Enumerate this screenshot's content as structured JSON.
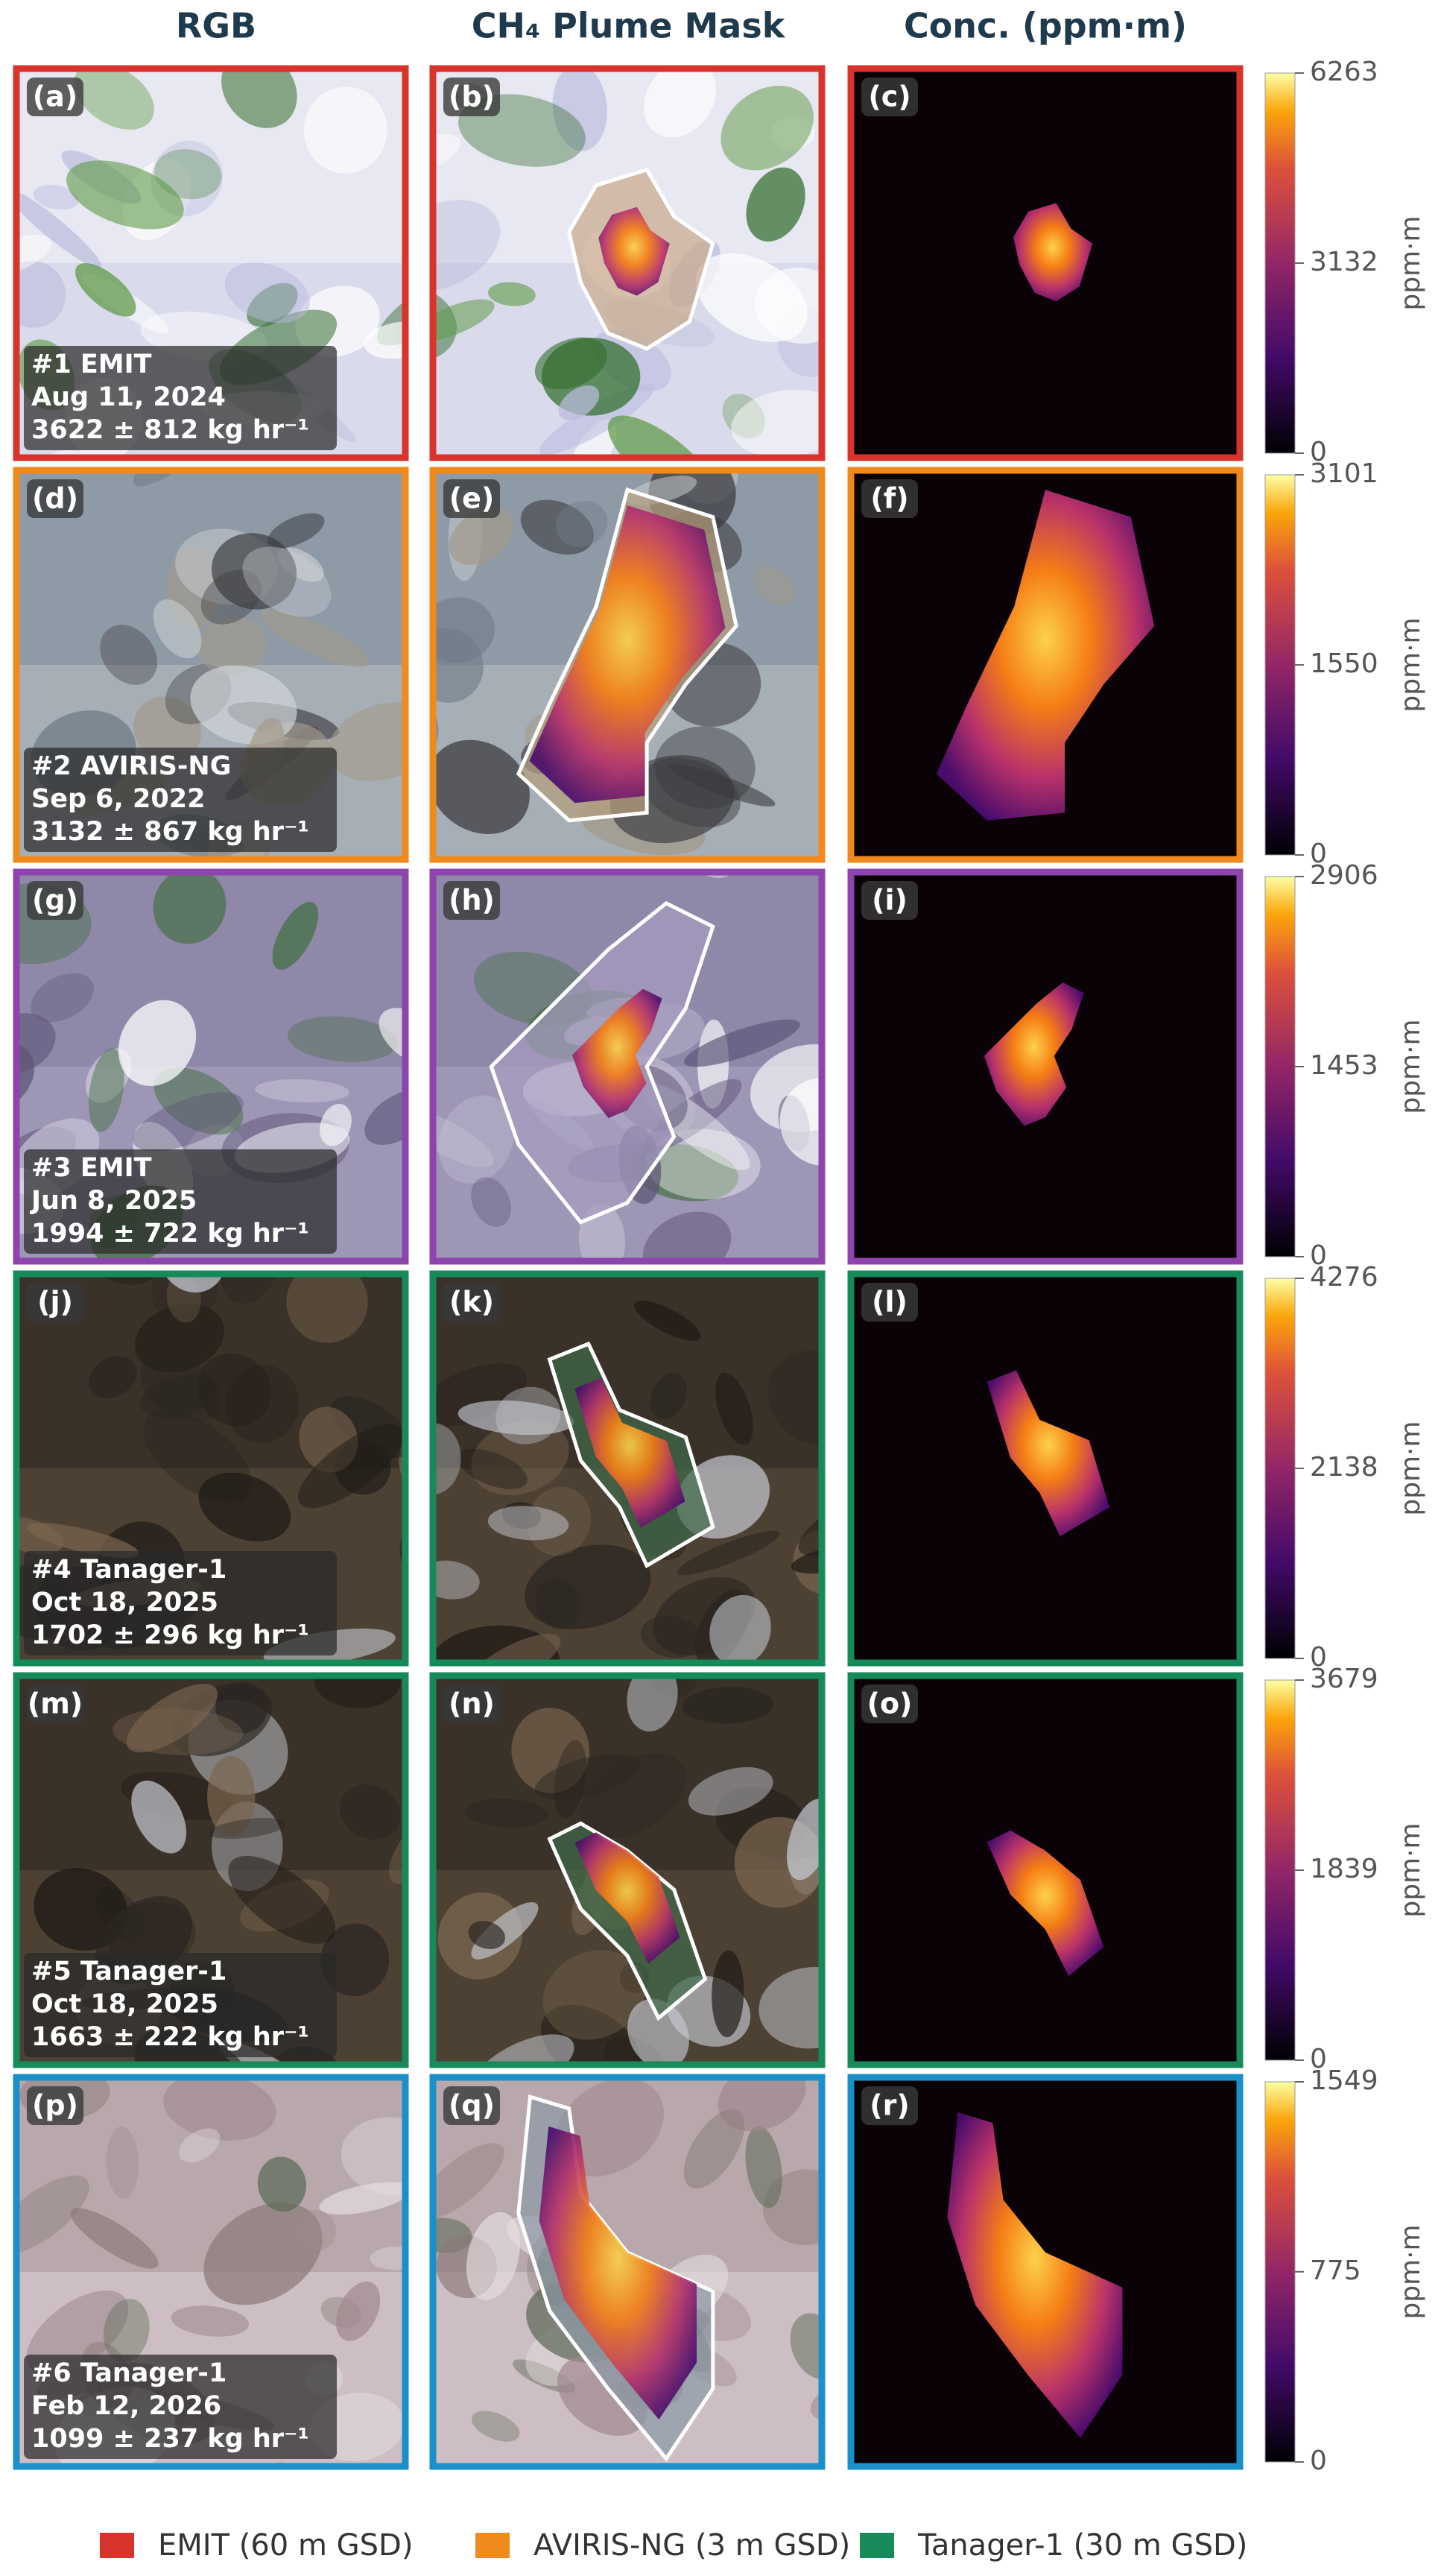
{
  "column_headers": [
    "RGB",
    "CH₄ Plume Mask",
    "Conc. (ppm·m)"
  ],
  "rows": [
    {
      "panels": [
        "(a)",
        "(b)",
        "(c)"
      ],
      "info": [
        "#1  EMIT",
        "Aug 11, 2024",
        "3622 ± 812 kg hr⁻¹"
      ],
      "border_color": "#d9342b",
      "colorbar": {
        "ticks": [
          0,
          3132,
          6263
        ],
        "label": "ppm·m"
      }
    },
    {
      "panels": [
        "(d)",
        "(e)",
        "(f)"
      ],
      "info": [
        "#2  AVIRIS-NG",
        "Sep 6, 2022",
        "3132 ± 867 kg hr⁻¹"
      ],
      "border_color": "#f08a1c",
      "colorbar": {
        "ticks": [
          0,
          1550,
          3101
        ],
        "label": "ppm·m"
      }
    },
    {
      "panels": [
        "(g)",
        "(h)",
        "(i)"
      ],
      "info": [
        "#3  EMIT",
        "Jun 8, 2025",
        "1994 ± 722 kg hr⁻¹"
      ],
      "border_color": "#8e44ad",
      "colorbar": {
        "ticks": [
          0,
          1453,
          2906
        ],
        "label": "ppm·m"
      }
    },
    {
      "panels": [
        "(j)",
        "(k)",
        "(l)"
      ],
      "info": [
        "#4  Tanager-1",
        "Oct 18, 2025",
        "1702 ± 296 kg hr⁻¹"
      ],
      "border_color": "#178a5a",
      "colorbar": {
        "ticks": [
          0,
          2138,
          4276
        ],
        "label": "ppm·m"
      }
    },
    {
      "panels": [
        "(m)",
        "(n)",
        "(o)"
      ],
      "info": [
        "#5  Tanager-1",
        "Oct 18, 2025",
        "1663 ± 222 kg hr⁻¹"
      ],
      "border_color": "#178a5a",
      "colorbar": {
        "ticks": [
          0,
          1839,
          3679
        ],
        "label": "ppm·m"
      }
    },
    {
      "panels": [
        "(p)",
        "(q)",
        "(r)"
      ],
      "info": [
        "#6  Tanager-1",
        "Feb 12, 2026",
        "1099 ± 237 kg hr⁻¹"
      ],
      "border_color": "#1b8fc9",
      "colorbar": {
        "ticks": [
          0,
          775,
          1549
        ],
        "label": "ppm·m"
      }
    }
  ],
  "legend": [
    {
      "label": "EMIT (60 m GSD)",
      "color": "#d9342b"
    },
    {
      "label": "AVIRIS-NG (3 m GSD)",
      "color": "#f08a1c"
    },
    {
      "label": "Tanager-1 (30 m GSD)",
      "color": "#178a5a"
    }
  ]
}
